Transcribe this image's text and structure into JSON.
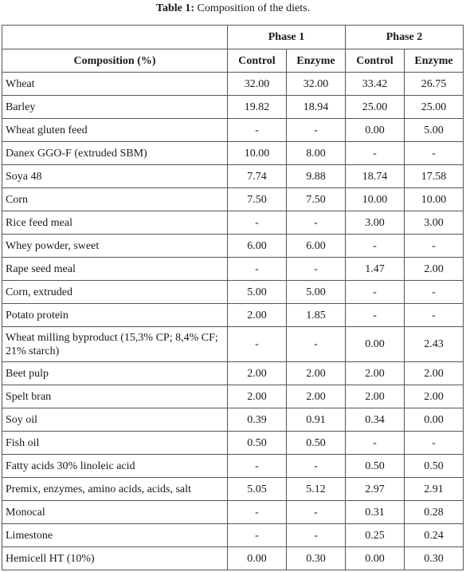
{
  "caption": {
    "label": "Table 1:",
    "text": " Composition of the diets."
  },
  "table": {
    "phase1": "Phase 1",
    "phase2": "Phase 2",
    "row_header": "Composition (%)",
    "sub_headers": [
      "Control",
      "Enzyme",
      "Control",
      "Enzyme"
    ],
    "rows": [
      {
        "name": "Wheat",
        "values": [
          "32.00",
          "32.00",
          "33.42",
          "26.75"
        ]
      },
      {
        "name": "Barley",
        "values": [
          "19.82",
          "18.94",
          "25.00",
          "25.00"
        ]
      },
      {
        "name": "Wheat gluten feed",
        "values": [
          "-",
          "-",
          "0.00",
          "5.00"
        ]
      },
      {
        "name": "Danex GGO-F (extruded SBM)",
        "values": [
          "10.00",
          "8.00",
          "-",
          "-"
        ]
      },
      {
        "name": "Soya 48",
        "values": [
          "7.74",
          "9.88",
          "18.74",
          "17.58"
        ]
      },
      {
        "name": "Corn",
        "values": [
          "7.50",
          "7.50",
          "10.00",
          "10.00"
        ]
      },
      {
        "name": "Rice feed meal",
        "values": [
          "-",
          "-",
          "3.00",
          "3.00"
        ]
      },
      {
        "name": "Whey powder, sweet",
        "values": [
          "6.00",
          "6.00",
          "-",
          "-"
        ]
      },
      {
        "name": "Rape seed meal",
        "values": [
          "-",
          "-",
          "1.47",
          "2.00"
        ]
      },
      {
        "name": "Corn, extruded",
        "values": [
          "5.00",
          "5.00",
          "-",
          "-"
        ]
      },
      {
        "name": "Potato protein",
        "values": [
          "2.00",
          "1.85",
          "-",
          "-"
        ]
      },
      {
        "name": "Wheat milling byproduct (15,3% CP; 8,4% CF; 21% starch)",
        "values": [
          "-",
          "-",
          "0.00",
          "2.43"
        ]
      },
      {
        "name": "Beet pulp",
        "values": [
          "2.00",
          "2.00",
          "2.00",
          "2.00"
        ]
      },
      {
        "name": "Spelt bran",
        "values": [
          "2.00",
          "2.00",
          "2.00",
          "2.00"
        ]
      },
      {
        "name": "Soy oil",
        "values": [
          "0.39",
          "0.91",
          "0.34",
          "0.00"
        ]
      },
      {
        "name": "Fish oil",
        "values": [
          "0.50",
          "0.50",
          "-",
          "-"
        ]
      },
      {
        "name": "Fatty acids 30% linoleic acid",
        "values": [
          "-",
          "-",
          "0.50",
          "0.50"
        ]
      },
      {
        "name": "Premix, enzymes, amino acids, acids, salt",
        "values": [
          "5.05",
          "5.12",
          "2.97",
          "2.91"
        ]
      },
      {
        "name": "Monocal",
        "values": [
          "-",
          "-",
          "0.31",
          "0.28"
        ]
      },
      {
        "name": "Limestone",
        "values": [
          "-",
          "-",
          "0.25",
          "0.24"
        ]
      },
      {
        "name": "Hemicell HT (10%)",
        "values": [
          "0.00",
          "0.30",
          "0.00",
          "0.30"
        ]
      }
    ]
  }
}
